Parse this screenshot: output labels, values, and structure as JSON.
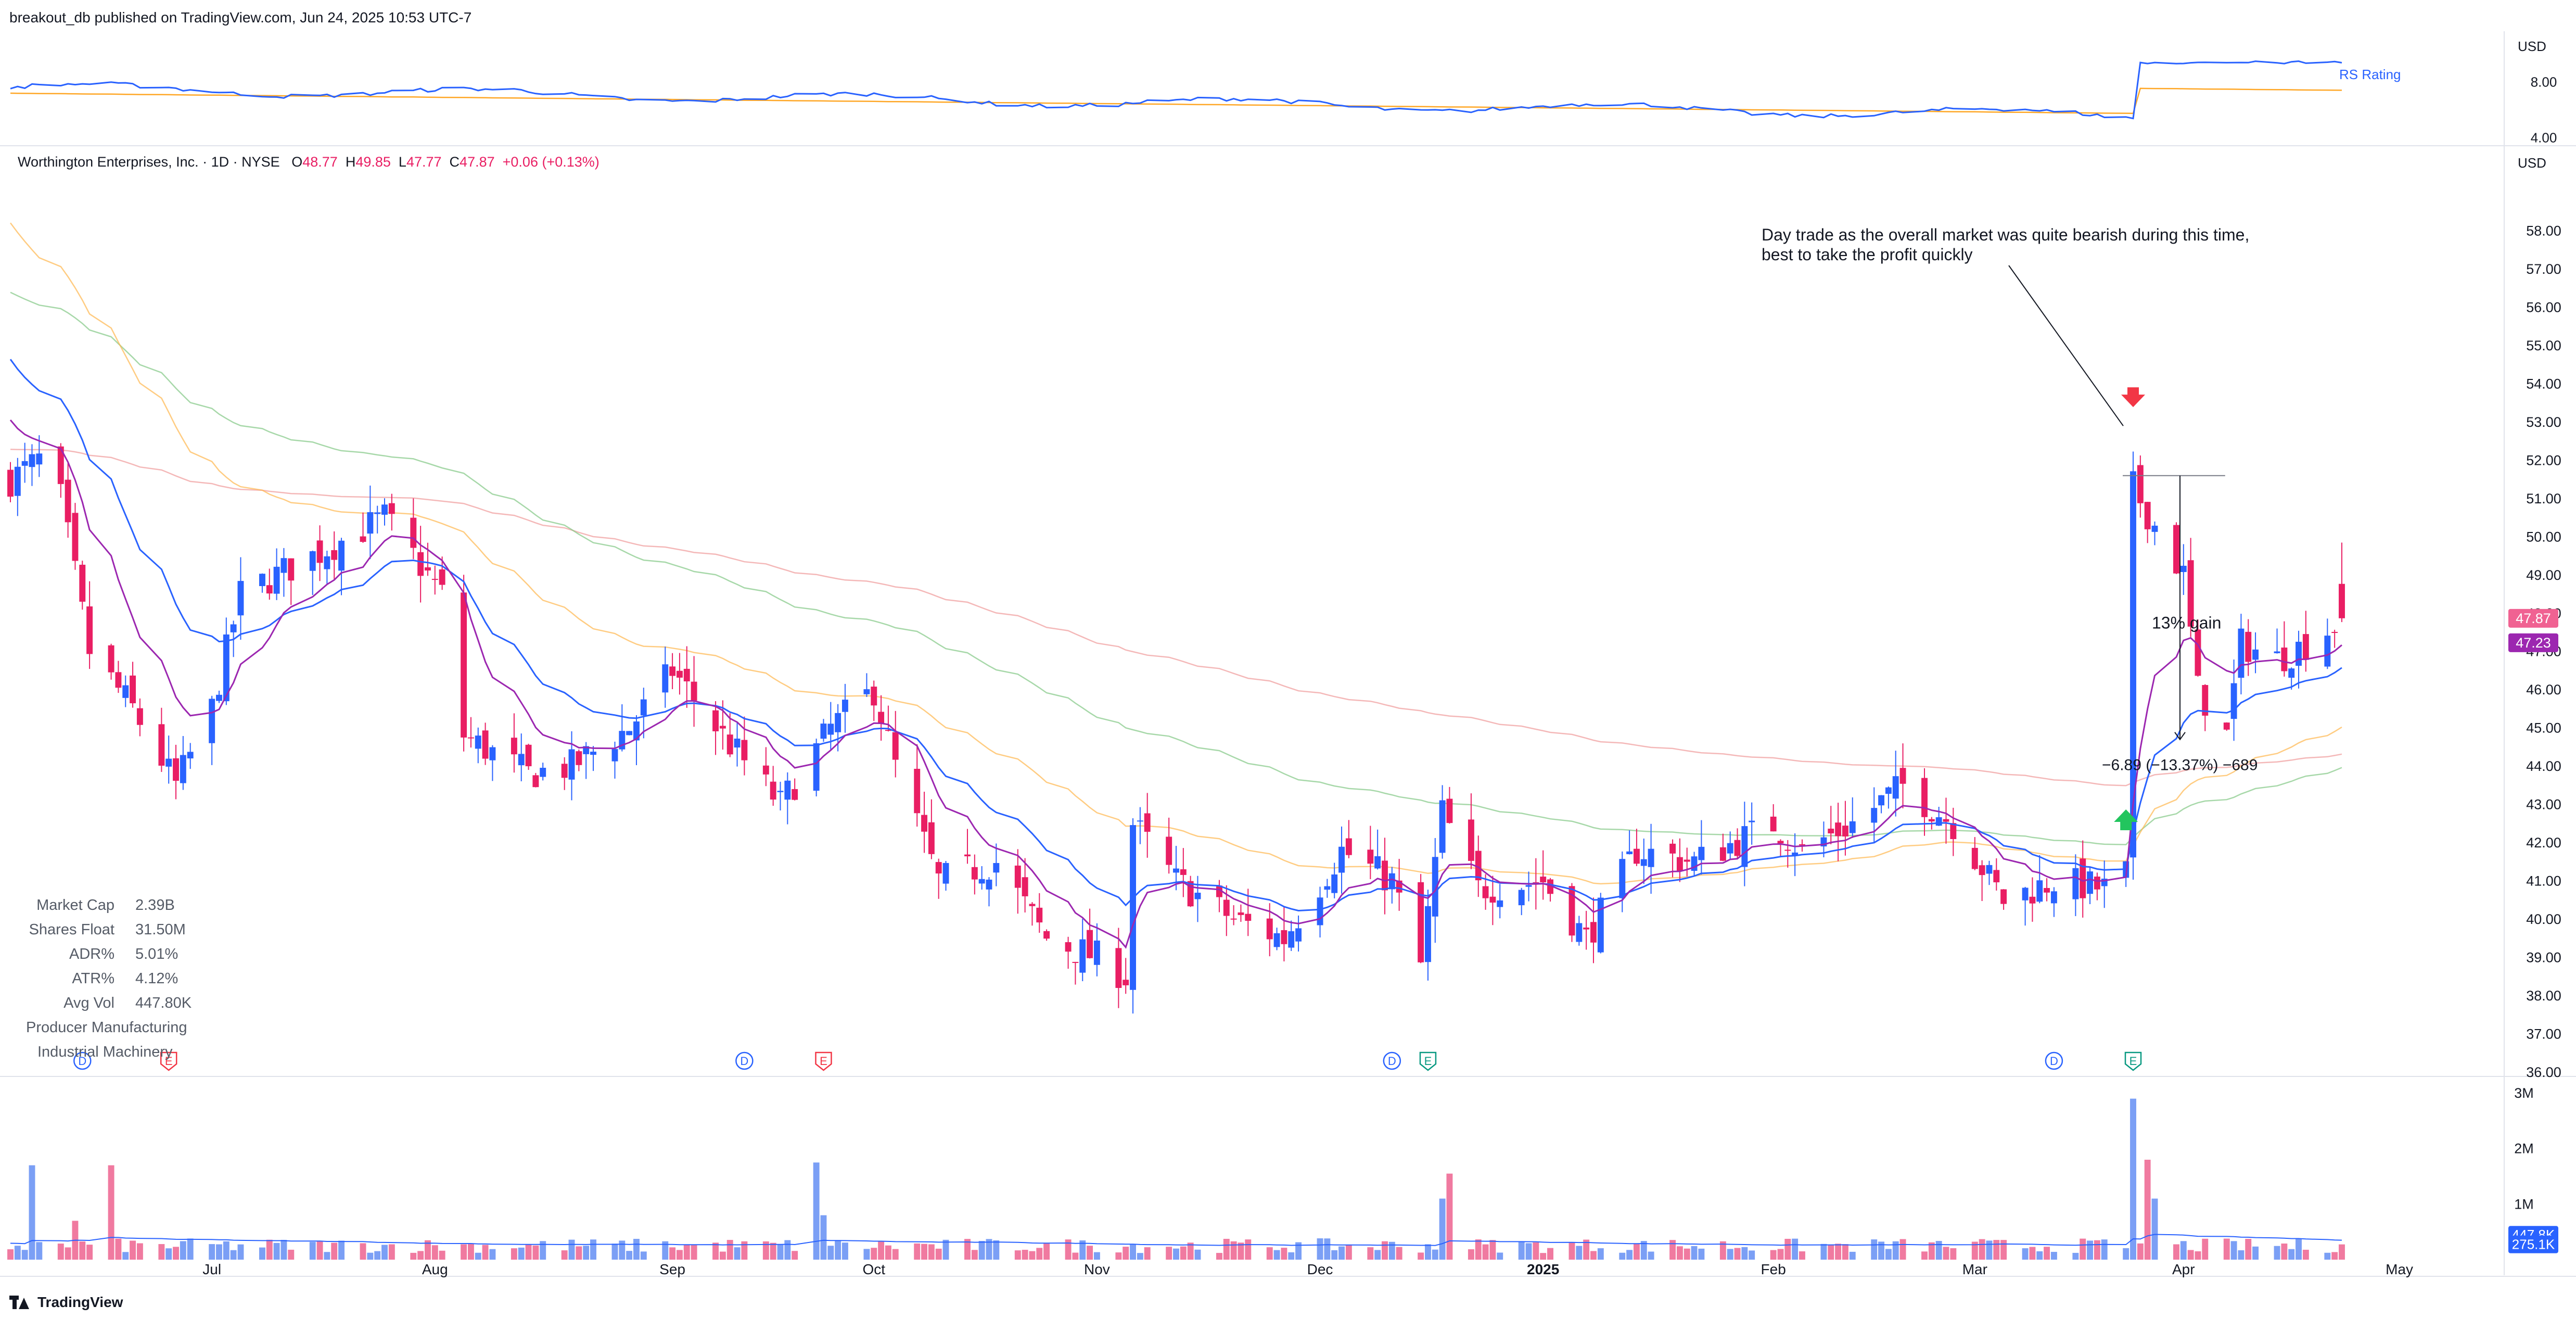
{
  "header": {
    "published": "breakout_db published on TradingView.com, Jun 24, 2025 10:53 UTC-7"
  },
  "legend": {
    "symbol": "Worthington Enterprises, Inc. · 1D · NYSE",
    "o_label": "O",
    "o": "48.77",
    "h_label": "H",
    "h": "49.85",
    "l_label": "L",
    "l": "47.77",
    "c_label": "C",
    "c": "47.87",
    "change": "+0.06 (+0.13%)"
  },
  "annotation": {
    "line1": "Day trade as the overall market was quite bearish during this time,",
    "line2": "best to take the profit quickly",
    "gain_label": "13% gain",
    "measure_label": "−6.89 (−13.37%) −689"
  },
  "stats": [
    {
      "label": "Market Cap",
      "value": "2.39B"
    },
    {
      "label": "Shares Float",
      "value": "31.50M"
    },
    {
      "label": "ADR%",
      "value": "5.01%"
    },
    {
      "label": "ATR%",
      "value": "4.12%"
    },
    {
      "label": "Avg Vol",
      "value": "447.80K"
    }
  ],
  "sector": "Producer Manufacturing",
  "industry": "Industrial Machinery",
  "footer": {
    "brand": "TradingView"
  },
  "currency": "USD",
  "rs_panel": {
    "label": "RS Rating",
    "ticks": [
      "8.00",
      "4.00"
    ]
  },
  "colors": {
    "up": "#2962ff",
    "down": "#e91e63",
    "ma_fast": "#2962ff",
    "ma_mid": "#9c27b0",
    "ma_50": "#ffb74d",
    "ma_100": "#81c784",
    "ma_200": "#ef9a9a",
    "last_price": "#f06292",
    "ma_badge": "#9c27b0",
    "arrow_sell": "#f23645",
    "arrow_buy": "#22c55e"
  },
  "badges": {
    "last_price": "47.87",
    "ma_value": "47.23",
    "vol_avg": "447.8K",
    "vol_last": "275.1K"
  },
  "event_markers": [
    {
      "type": "D",
      "date": "2024-06-13"
    },
    {
      "type": "E",
      "date": "2024-06-25"
    },
    {
      "type": "D",
      "date": "2024-09-13"
    },
    {
      "type": "E",
      "date": "2024-09-24"
    },
    {
      "type": "D",
      "date": "2024-12-12"
    },
    {
      "type": "E",
      "date": "2024-12-17"
    },
    {
      "type": "D",
      "date": "2025-03-14"
    },
    {
      "type": "E",
      "date": "2025-03-25"
    }
  ],
  "chart_data": {
    "type": "candlestick",
    "price_axis": {
      "ylim": [
        36,
        59
      ],
      "ticks": [
        "58.00",
        "57.00",
        "56.00",
        "55.00",
        "54.00",
        "53.00",
        "52.00",
        "51.00",
        "50.00",
        "49.00",
        "48.00",
        "47.00",
        "46.00",
        "45.00",
        "44.00",
        "43.00",
        "42.00",
        "41.00",
        "40.00",
        "39.00",
        "38.00",
        "37.00",
        "36.00"
      ]
    },
    "volume_axis": {
      "ylim": [
        0,
        3000000
      ],
      "ticks": [
        "3M",
        "2M",
        "1M"
      ]
    },
    "time_axis": {
      "labels": [
        "Jul",
        "Aug",
        "Sep",
        "Oct",
        "Nov",
        "Dec",
        "2025",
        "Feb",
        "Mar",
        "Apr",
        "May"
      ],
      "label_dates": [
        "2024-07-01",
        "2024-08-01",
        "2024-09-03",
        "2024-10-01",
        "2024-11-01",
        "2024-12-02",
        "2025-01-02",
        "2025-02-03",
        "2025-03-03",
        "2025-04-01",
        "2025-05-01"
      ]
    },
    "overlays": [
      "EMA fast",
      "EMA mid",
      "SMA 50",
      "SMA 100",
      "SMA 200"
    ],
    "markers": [
      {
        "type": "sell-arrow",
        "date": "2025-03-25",
        "price": 53.5
      },
      {
        "type": "buy-arrow",
        "date": "2025-03-24",
        "price": 42.6
      }
    ],
    "trade": {
      "entry_date": "2025-03-25",
      "high": 51.6,
      "low": 44.7,
      "end_date": "2025-04-01"
    },
    "waypoints": [
      [
        "2024-06-03",
        51.5
      ],
      [
        "2024-06-07",
        52.0
      ],
      [
        "2024-06-10",
        51.0
      ],
      [
        "2024-06-14",
        47.0
      ],
      [
        "2024-06-20",
        45.5
      ],
      [
        "2024-06-26",
        43.5
      ],
      [
        "2024-07-01",
        45.5
      ],
      [
        "2024-07-05",
        48.5
      ],
      [
        "2024-07-15",
        49.5
      ],
      [
        "2024-07-25",
        50.5
      ],
      [
        "2024-08-02",
        48.5
      ],
      [
        "2024-08-05",
        44.8
      ],
      [
        "2024-08-14",
        43.8
      ],
      [
        "2024-08-20",
        44.0
      ],
      [
        "2024-08-28",
        45.0
      ],
      [
        "2024-09-03",
        46.5
      ],
      [
        "2024-09-10",
        44.8
      ],
      [
        "2024-09-18",
        43.0
      ],
      [
        "2024-09-25",
        45.0
      ],
      [
        "2024-10-01",
        46.0
      ],
      [
        "2024-10-04",
        44.0
      ],
      [
        "2024-10-10",
        41.0
      ],
      [
        "2024-10-18",
        41.5
      ],
      [
        "2024-10-25",
        39.5
      ],
      [
        "2024-11-01",
        39.0
      ],
      [
        "2024-11-05",
        38.5
      ],
      [
        "2024-11-06",
        42.5
      ],
      [
        "2024-11-12",
        41.0
      ],
      [
        "2024-11-20",
        40.0
      ],
      [
        "2024-11-27",
        39.5
      ],
      [
        "2024-12-05",
        41.8
      ],
      [
        "2024-12-12",
        41.0
      ],
      [
        "2024-12-16",
        38.8
      ],
      [
        "2024-12-19",
        42.8
      ],
      [
        "2024-12-24",
        40.8
      ],
      [
        "2025-01-02",
        41.0
      ],
      [
        "2025-01-08",
        39.5
      ],
      [
        "2025-01-15",
        41.8
      ],
      [
        "2025-01-23",
        41.5
      ],
      [
        "2025-02-03",
        42.5
      ],
      [
        "2025-02-07",
        41.8
      ],
      [
        "2025-02-14",
        42.5
      ],
      [
        "2025-02-21",
        43.5
      ],
      [
        "2025-02-28",
        42.5
      ],
      [
        "2025-03-07",
        40.5
      ],
      [
        "2025-03-14",
        41.0
      ],
      [
        "2025-03-21",
        40.8
      ],
      [
        "2025-03-24",
        41.2
      ],
      [
        "2025-03-25",
        51.3
      ],
      [
        "2025-03-28",
        50.3
      ],
      [
        "2025-04-01",
        49.0
      ],
      [
        "2025-04-03",
        46.0
      ],
      [
        "2025-04-07",
        44.8
      ],
      [
        "2025-04-09",
        47.2
      ],
      [
        "2025-04-14",
        46.8
      ],
      [
        "2025-04-18",
        47.2
      ],
      [
        "2025-04-23",
        47.8
      ]
    ],
    "volume_spikes": [
      {
        "date": "2024-06-06",
        "value": 1700000
      },
      {
        "date": "2024-06-12",
        "value": 700000
      },
      {
        "date": "2024-06-17",
        "value": 1700000
      },
      {
        "date": "2024-09-23",
        "value": 1750000
      },
      {
        "date": "2024-09-24",
        "value": 800000
      },
      {
        "date": "2024-12-19",
        "value": 1100000
      },
      {
        "date": "2024-12-20",
        "value": 1550000
      },
      {
        "date": "2025-03-25",
        "value": 2900000
      },
      {
        "date": "2025-03-27",
        "value": 1800000
      },
      {
        "date": "2025-03-28",
        "value": 1100000
      }
    ],
    "volume_base": 240000,
    "last_bar": {
      "date": "2025-04-23",
      "open": 48.77,
      "high": 49.85,
      "low": 47.77,
      "close": 47.87,
      "volume": 275100
    }
  }
}
